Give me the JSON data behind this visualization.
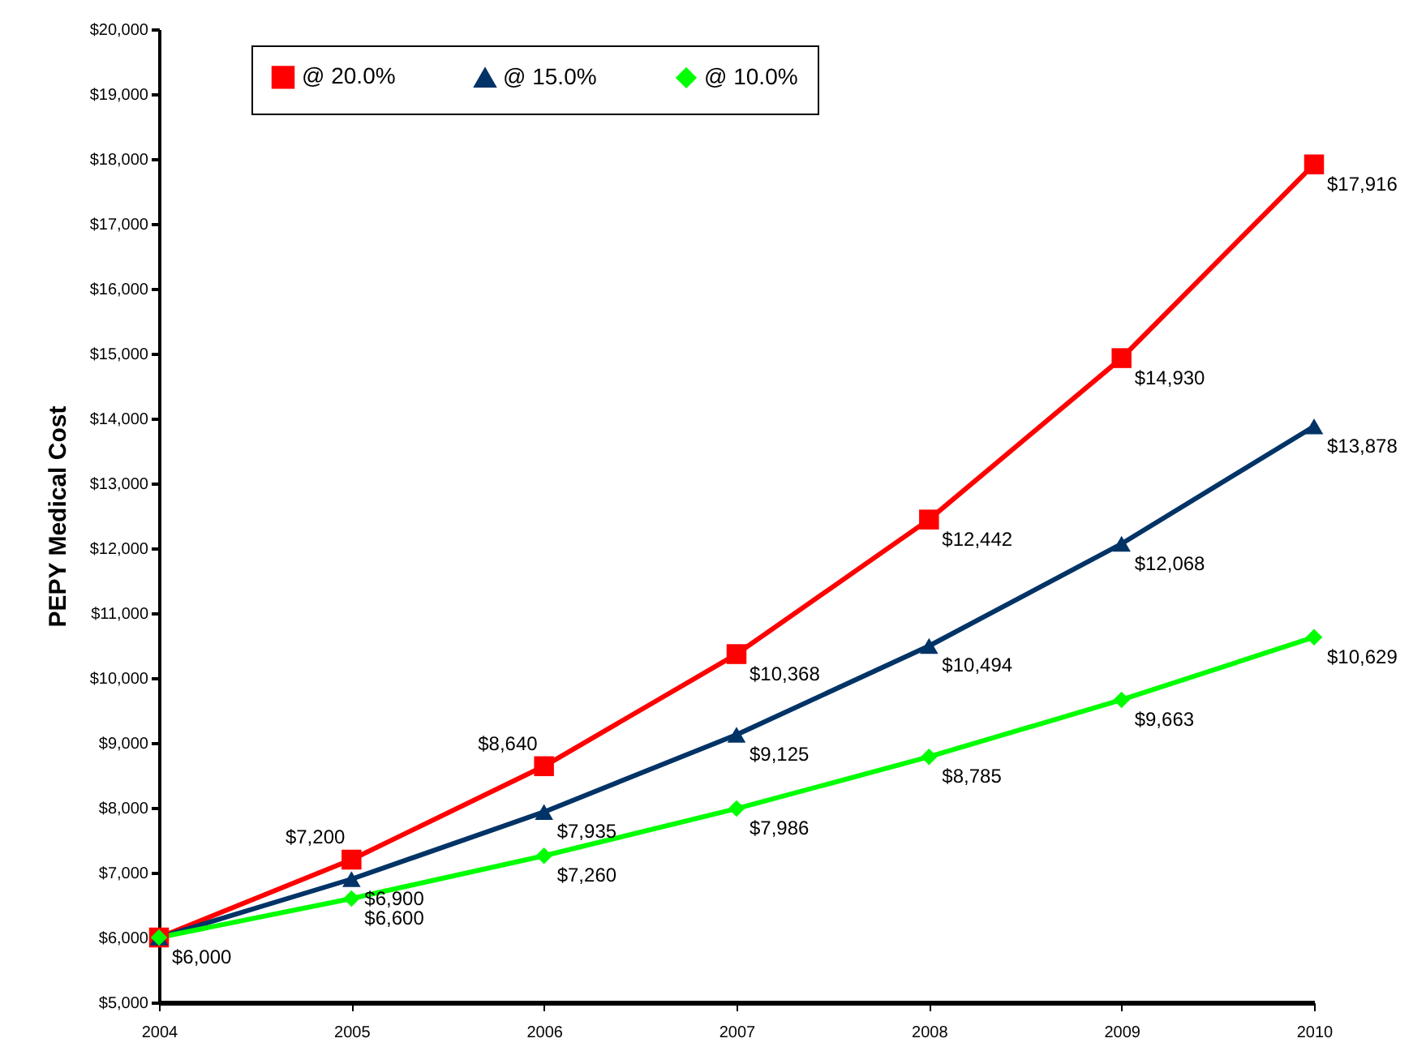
{
  "chart_data": {
    "type": "line",
    "ylabel": "PEPY Medical Cost",
    "categories": [
      "2004",
      "2005",
      "2006",
      "2007",
      "2008",
      "2009",
      "2010"
    ],
    "series": [
      {
        "name": "@ 20.0%",
        "color": "#ff0000",
        "marker": "square",
        "values": [
          6000,
          7200,
          8640,
          10368,
          12442,
          14930,
          17916
        ],
        "value_labels": [
          null,
          "$7,200",
          "$8,640",
          "$10,368",
          "$12,442",
          "$14,930",
          "$17,916"
        ]
      },
      {
        "name": "@ 15.0%",
        "color": "#003366",
        "marker": "triangle",
        "values": [
          6000,
          6900,
          7935,
          9125,
          10494,
          12068,
          13878
        ],
        "value_labels": [
          null,
          "$6,900",
          "$7,935",
          "$9,125",
          "$10,494",
          "$12,068",
          "$13,878"
        ]
      },
      {
        "name": "@ 10.0%",
        "color": "#00ff00",
        "marker": "diamond",
        "values": [
          6000,
          6600,
          7260,
          7986,
          8785,
          9663,
          10629
        ],
        "value_labels": [
          "$6,000",
          "$6,600",
          "$7,260",
          "$7,986",
          "$8,785",
          "$9,663",
          "$10,629"
        ]
      }
    ],
    "ylim": [
      5000,
      20000
    ],
    "yticks": [
      {
        "value": 5000,
        "label": "$5,000"
      },
      {
        "value": 6000,
        "label": "$6,000"
      },
      {
        "value": 7000,
        "label": "$7,000"
      },
      {
        "value": 8000,
        "label": "$8,000"
      },
      {
        "value": 9000,
        "label": "$9,000"
      },
      {
        "value": 10000,
        "label": "$10,000"
      },
      {
        "value": 11000,
        "label": "$11,000"
      },
      {
        "value": 12000,
        "label": "$12,000"
      },
      {
        "value": 13000,
        "label": "$13,000"
      },
      {
        "value": 14000,
        "label": "$14,000"
      },
      {
        "value": 15000,
        "label": "$15,000"
      },
      {
        "value": 16000,
        "label": "$16,000"
      },
      {
        "value": 17000,
        "label": "$17,000"
      },
      {
        "value": 18000,
        "label": "$18,000"
      },
      {
        "value": 19000,
        "label": "$19,000"
      },
      {
        "value": 20000,
        "label": "$20,000"
      }
    ],
    "grid": false,
    "legend": "top",
    "line_style": "solid"
  }
}
